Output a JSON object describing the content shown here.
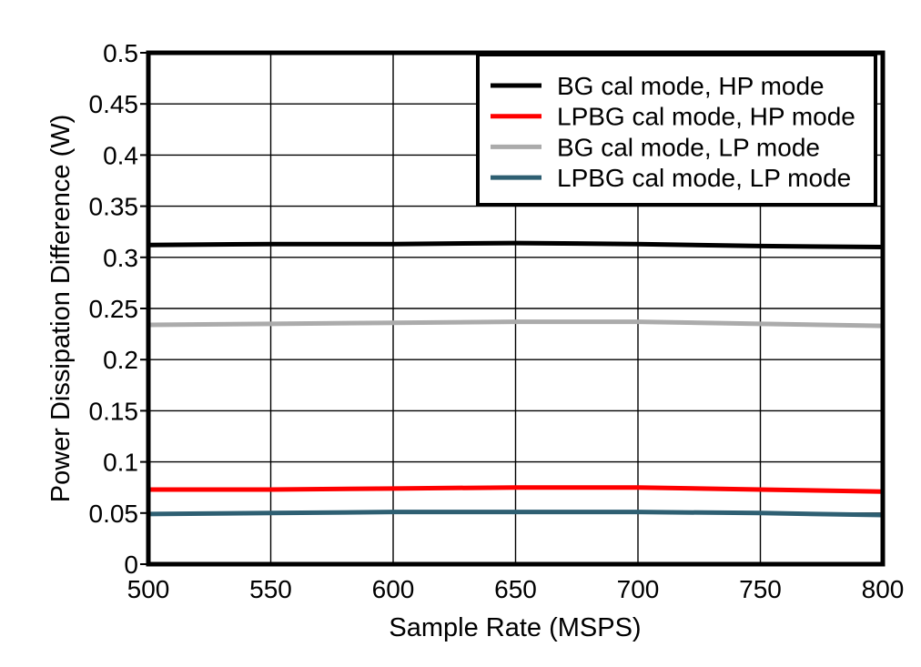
{
  "chart_data": {
    "type": "line",
    "x": [
      500,
      550,
      600,
      650,
      700,
      750,
      800
    ],
    "series": [
      {
        "name": "BG cal mode, HP mode",
        "color": "#000000",
        "values": [
          0.312,
          0.313,
          0.313,
          0.314,
          0.313,
          0.311,
          0.31
        ]
      },
      {
        "name": "LPBG cal mode, HP mode",
        "color": "#FF0000",
        "values": [
          0.073,
          0.073,
          0.074,
          0.075,
          0.075,
          0.073,
          0.071
        ]
      },
      {
        "name": "BG cal mode, LP mode",
        "color": "#ABABAB",
        "values": [
          0.234,
          0.235,
          0.236,
          0.237,
          0.237,
          0.235,
          0.233
        ]
      },
      {
        "name": "LPBG cal mode, LP mode",
        "color": "#2E5F72",
        "values": [
          0.049,
          0.05,
          0.051,
          0.051,
          0.051,
          0.05,
          0.048
        ]
      }
    ],
    "xlabel": "Sample Rate (MSPS)",
    "ylabel": "Power Dissipation Difference (W)",
    "xlim": [
      500,
      800
    ],
    "ylim": [
      0,
      0.5
    ],
    "x_ticks": [
      500,
      550,
      600,
      650,
      700,
      750,
      800
    ],
    "x_tick_labels": [
      "500",
      "550",
      "600",
      "650",
      "700",
      "750",
      "800"
    ],
    "y_ticks": [
      0,
      0.05,
      0.1,
      0.15,
      0.2,
      0.25,
      0.3,
      0.35,
      0.4,
      0.45,
      0.5
    ],
    "y_tick_labels": [
      "0",
      "0.05",
      "0.1",
      "0.15",
      "0.2",
      "0.25",
      "0.3",
      "0.35",
      "0.4",
      "0.45",
      "0.5"
    ],
    "grid": true,
    "grid_color": "#000000",
    "axis_color": "#000000",
    "background_color": "#FFFFFF",
    "legend_position": "top-right"
  }
}
